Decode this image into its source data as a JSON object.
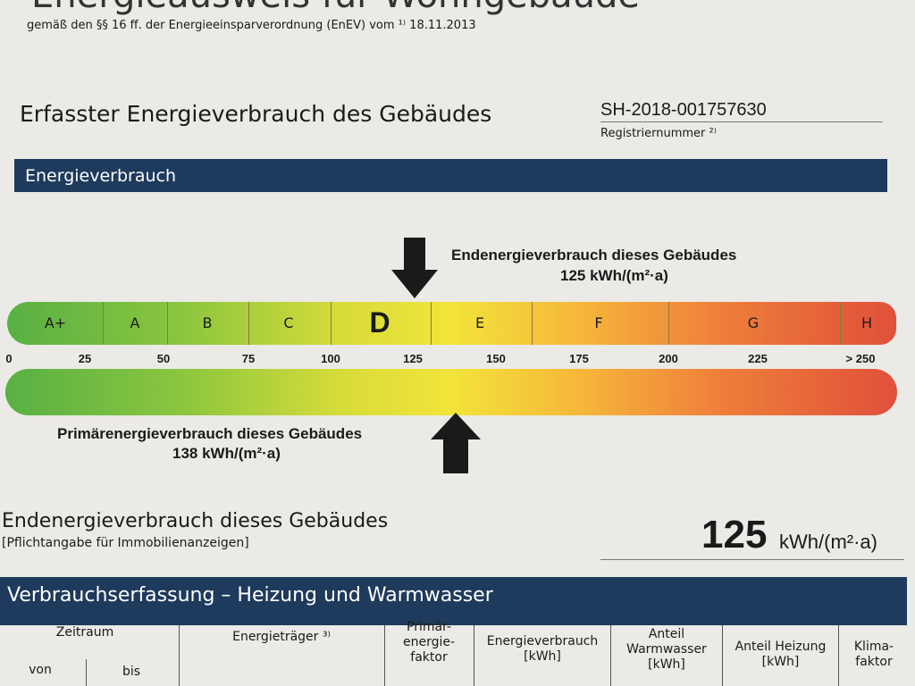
{
  "header": {
    "title": "Energieausweis für Wohngebäude",
    "subtitle": "gemäß den §§ 16 ff. der Energieeinsparverordnung (EnEV) vom ¹⁾ 18.11.2013"
  },
  "section": {
    "title": "Erfasster Energieverbrauch des Gebäudes",
    "registration_number": "SH-2018-001757630",
    "registration_label": "Registriernummer ²⁾"
  },
  "band_heading": "Energieverbrauch",
  "scale": {
    "end_energy_label": "Endenergieverbrauch dieses Gebäudes",
    "end_energy_value": "125 kWh/(m²·a)",
    "classes": [
      "A+",
      "A",
      "B",
      "C",
      "D",
      "E",
      "F",
      "G",
      "H"
    ],
    "ticks": [
      "0",
      "25",
      "50",
      "75",
      "100",
      "125",
      "150",
      "175",
      "200",
      "225",
      "> 250"
    ],
    "primary_energy_label": "Primärenergieverbrauch dieses Gebäudes",
    "primary_energy_value": "138 kWh/(m²·a)"
  },
  "summary": {
    "label": "Endenergieverbrauch dieses Gebäudes",
    "note": "[Pflichtangabe für Immobilienanzeigen]",
    "value": "125",
    "unit": "kWh/(m²·a)"
  },
  "table": {
    "title": "Verbrauchserfassung – Heizung und Warmwasser",
    "headers": [
      "Zeitraum",
      "von",
      "bis",
      "Energieträger ³⁾",
      "Primär-\nenergie-\nfaktor",
      "Energieverbrauch\n[kWh]",
      "Anteil\nWarmwasser\n[kWh]",
      "Anteil Heizung\n[kWh]",
      "Klima-\nfaktor"
    ]
  }
}
